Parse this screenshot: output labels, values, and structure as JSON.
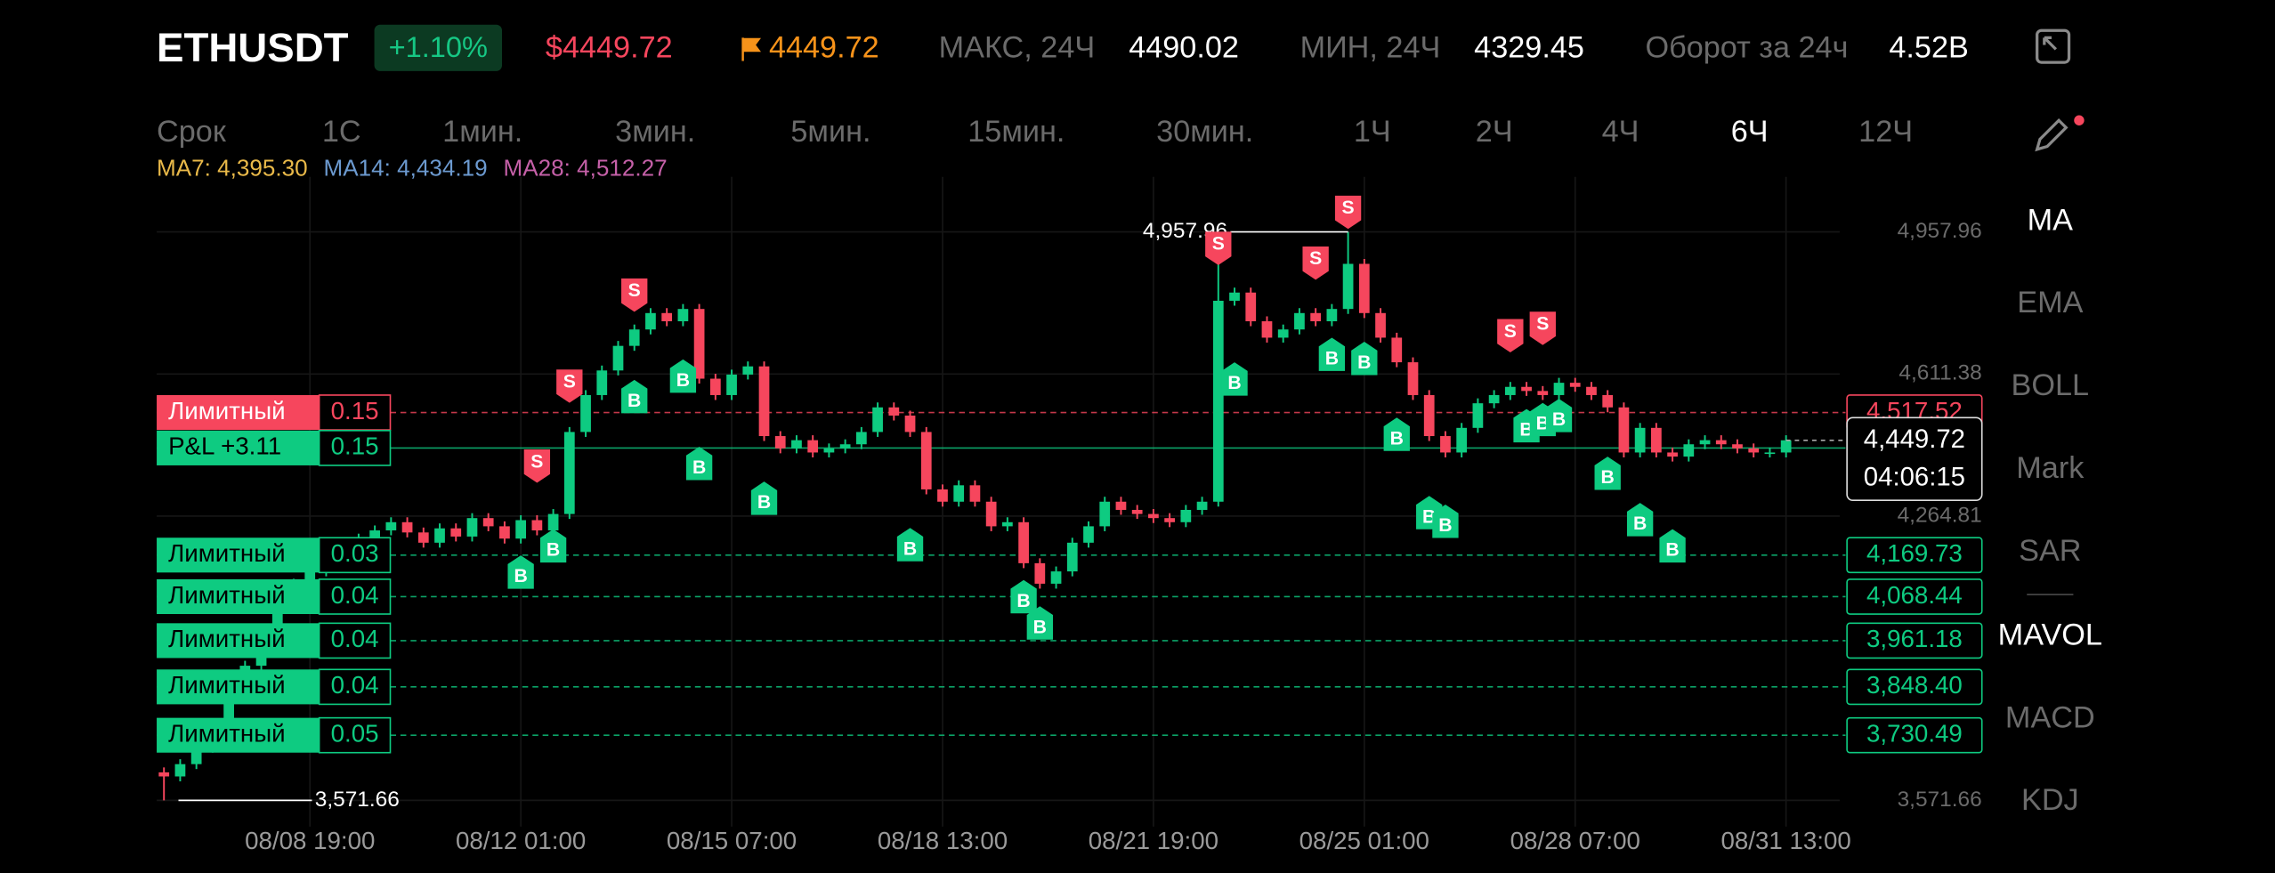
{
  "header": {
    "symbol": "ETHUSDT",
    "change": "+1.10%",
    "last_price": "$4449.72",
    "mark_price": "4449.72",
    "high_label": "МАКС, 24Ч",
    "high": "4490.02",
    "low_label": "МИН, 24Ч",
    "low": "4329.45",
    "turnover_label": "Оборот за 24ч",
    "turnover": "4.52B"
  },
  "timeframes": {
    "label": "Срок",
    "items": [
      "1С",
      "1мин.",
      "3мин.",
      "5мин.",
      "15мин.",
      "30мин.",
      "1Ч",
      "2Ч",
      "4Ч",
      "6Ч",
      "12Ч"
    ],
    "selected": 9
  },
  "indicators": {
    "items": [
      "MA",
      "EMA",
      "BOLL",
      "Mark",
      "SAR",
      "MAVOL",
      "MACD",
      "KDJ"
    ],
    "active": [
      0,
      5
    ]
  },
  "chart_data": {
    "type": "candlestick",
    "ma_legend": [
      {
        "text": "MA7: 4,395.30",
        "color": "#e9b949"
      },
      {
        "text": "MA14: 4,434.19",
        "color": "#6c9ad0"
      },
      {
        "text": "MA28: 4,512.27",
        "color": "#c560a8"
      }
    ],
    "up_color": "#0ecb81",
    "down_color": "#f6465d",
    "open": [
      3640,
      3630,
      3660,
      3700,
      3760,
      3820,
      3900,
      3980,
      4050,
      4100,
      4130,
      4160,
      4190,
      4210,
      4230,
      4250,
      4225,
      4200,
      4235,
      4215,
      4260,
      4240,
      4210,
      4255,
      4230,
      4270,
      4470,
      4560,
      4620,
      4680,
      4720,
      4760,
      4740,
      4770,
      4600,
      4560,
      4610,
      4630,
      4460,
      4430,
      4450,
      4420,
      4430,
      4440,
      4470,
      4530,
      4510,
      4470,
      4330,
      4300,
      4340,
      4300,
      4240,
      4250,
      4150,
      4100,
      4130,
      4200,
      4240,
      4300,
      4280,
      4270,
      4260,
      4250,
      4280,
      4300,
      4790,
      4810,
      4740,
      4700,
      4720,
      4760,
      4740,
      4770,
      4880,
      4760,
      4700,
      4640,
      4560,
      4460,
      4420,
      4480,
      4540,
      4560,
      4580,
      4570,
      4560,
      4590,
      4580,
      4560,
      4530,
      4420,
      4480,
      4420,
      4410,
      4440,
      4450,
      4440,
      4430,
      4420,
      4420
    ],
    "high": [
      3652,
      3672,
      3712,
      3772,
      3832,
      3912,
      3992,
      4062,
      4112,
      4142,
      4172,
      4202,
      4222,
      4242,
      4262,
      4262,
      4237,
      4247,
      4247,
      4272,
      4272,
      4252,
      4267,
      4267,
      4282,
      4482,
      4572,
      4632,
      4692,
      4732,
      4772,
      4772,
      4782,
      4782,
      4612,
      4622,
      4642,
      4642,
      4472,
      4462,
      4462,
      4442,
      4452,
      4482,
      4542,
      4542,
      4522,
      4482,
      4342,
      4352,
      4352,
      4312,
      4262,
      4262,
      4162,
      4142,
      4212,
      4252,
      4312,
      4312,
      4292,
      4282,
      4272,
      4292,
      4312,
      4890,
      4822,
      4822,
      4752,
      4732,
      4772,
      4772,
      4782,
      4957.96,
      4892,
      4772,
      4712,
      4652,
      4572,
      4472,
      4492,
      4552,
      4572,
      4592,
      4592,
      4582,
      4602,
      4602,
      4592,
      4572,
      4542,
      4492,
      4492,
      4432,
      4452,
      4462,
      4462,
      4452,
      4442,
      4432,
      4462
    ],
    "low": [
      3571.66,
      3618,
      3648,
      3688,
      3748,
      3808,
      3888,
      3968,
      4038,
      4088,
      4118,
      4148,
      4178,
      4198,
      4218,
      4213,
      4188,
      4188,
      4203,
      4203,
      4228,
      4198,
      4198,
      4218,
      4218,
      4258,
      4458,
      4548,
      4608,
      4668,
      4708,
      4728,
      4728,
      4588,
      4548,
      4548,
      4598,
      4448,
      4418,
      4418,
      4408,
      4408,
      4418,
      4428,
      4458,
      4498,
      4458,
      4318,
      4288,
      4288,
      4288,
      4228,
      4228,
      4138,
      4088,
      4088,
      4118,
      4188,
      4228,
      4268,
      4258,
      4248,
      4238,
      4238,
      4268,
      4288,
      4778,
      4728,
      4688,
      4688,
      4708,
      4728,
      4728,
      4758,
      4748,
      4688,
      4628,
      4548,
      4448,
      4408,
      4408,
      4468,
      4528,
      4548,
      4558,
      4548,
      4548,
      4568,
      4548,
      4518,
      4408,
      4408,
      4408,
      4398,
      4398,
      4428,
      4428,
      4418,
      4408,
      4408,
      4408
    ],
    "close": [
      3630,
      3660,
      3700,
      3760,
      3820,
      3900,
      3980,
      4050,
      4100,
      4130,
      4160,
      4190,
      4210,
      4230,
      4250,
      4225,
      4200,
      4235,
      4215,
      4260,
      4240,
      4210,
      4255,
      4230,
      4270,
      4470,
      4560,
      4620,
      4680,
      4720,
      4760,
      4740,
      4770,
      4600,
      4560,
      4610,
      4630,
      4460,
      4430,
      4450,
      4420,
      4430,
      4440,
      4470,
      4530,
      4510,
      4470,
      4330,
      4300,
      4340,
      4300,
      4240,
      4250,
      4150,
      4100,
      4130,
      4200,
      4240,
      4300,
      4280,
      4270,
      4260,
      4250,
      4280,
      4300,
      4790,
      4810,
      4740,
      4700,
      4720,
      4760,
      4740,
      4770,
      4880,
      4760,
      4700,
      4640,
      4560,
      4460,
      4420,
      4480,
      4540,
      4560,
      4580,
      4570,
      4560,
      4590,
      4580,
      4560,
      4530,
      4420,
      4480,
      4420,
      4410,
      4440,
      4450,
      4440,
      4430,
      4420,
      4420,
      4449.72
    ],
    "ylim": [
      3490,
      5092
    ],
    "yticks": [
      {
        "value": 4957.96,
        "label": "4,957.96"
      },
      {
        "value": 4611.38,
        "label": "4,611.38"
      },
      {
        "value": 4264.81,
        "label": "4,264.81"
      },
      {
        "value": 3571.66,
        "label": "3,571.66"
      }
    ],
    "xticks": [
      {
        "value": 9,
        "label": "08/08 19:00"
      },
      {
        "value": 22,
        "label": "08/12 01:00"
      },
      {
        "value": 35,
        "label": "08/15 07:00"
      },
      {
        "value": 48,
        "label": "08/18 13:00"
      },
      {
        "value": 61,
        "label": "08/21 19:00"
      },
      {
        "value": 74,
        "label": "08/25 01:00"
      },
      {
        "value": 87,
        "label": "08/28 07:00"
      },
      {
        "value": 100,
        "label": "08/31 13:00"
      }
    ],
    "grid": true,
    "high_annotation": {
      "value": 4957.96,
      "label": "4,957.96",
      "candle": 73
    },
    "low_annotation": {
      "value": 3571.66,
      "label": "3,571.66",
      "candle": 0
    },
    "orders": [
      {
        "type": "Лимитный",
        "qty": "0.15",
        "price": 4517.52,
        "price_label": "4,517.52",
        "side": "sell"
      },
      {
        "type": "Лимитный",
        "qty": "0.03",
        "price": 4169.73,
        "price_label": "4,169.73",
        "side": "buy"
      },
      {
        "type": "Лимитный",
        "qty": "0.04",
        "price": 4068.44,
        "price_label": "4,068.44",
        "side": "buy"
      },
      {
        "type": "Лимитный",
        "qty": "0.04",
        "price": 3961.18,
        "price_label": "3,961.18",
        "side": "buy"
      },
      {
        "type": "Лимитный",
        "qty": "0.04",
        "price": 3848.4,
        "price_label": "3,848.40",
        "side": "buy"
      },
      {
        "type": "Лимитный",
        "qty": "0.05",
        "price": 3730.49,
        "price_label": "3,730.49",
        "side": "buy"
      }
    ],
    "position": {
      "label": "P&L +3.11",
      "qty": "0.15",
      "price": 4431
    },
    "last": {
      "value": 4449.72,
      "label": "4,449.72",
      "countdown": "04:06:15"
    },
    "trades": [
      {
        "side": "S",
        "candle": 23,
        "price": 4339
      },
      {
        "side": "S",
        "candle": 25,
        "price": 4534
      },
      {
        "side": "S",
        "candle": 29,
        "price": 4756
      },
      {
        "side": "S",
        "candle": 65,
        "price": 4870
      },
      {
        "side": "S",
        "candle": 71,
        "price": 4834
      },
      {
        "side": "S",
        "candle": 73,
        "price": 4958
      },
      {
        "side": "S",
        "candle": 83,
        "price": 4657
      },
      {
        "side": "S",
        "candle": 85,
        "price": 4675
      },
      {
        "side": "B",
        "candle": 22,
        "price": 4169
      },
      {
        "side": "B",
        "candle": 24,
        "price": 4233
      },
      {
        "side": "B",
        "candle": 29,
        "price": 4597
      },
      {
        "side": "B",
        "candle": 32,
        "price": 4647
      },
      {
        "side": "B",
        "candle": 33,
        "price": 4434
      },
      {
        "side": "B",
        "candle": 37,
        "price": 4349
      },
      {
        "side": "B",
        "candle": 46,
        "price": 4236
      },
      {
        "side": "B",
        "candle": 53,
        "price": 4109
      },
      {
        "side": "B",
        "candle": 54,
        "price": 4045
      },
      {
        "side": "B",
        "candle": 66,
        "price": 4640
      },
      {
        "side": "B",
        "candle": 72,
        "price": 4700
      },
      {
        "side": "B",
        "candle": 74,
        "price": 4690
      },
      {
        "side": "B",
        "candle": 76,
        "price": 4505
      },
      {
        "side": "B",
        "candle": 78,
        "price": 4314
      },
      {
        "side": "B",
        "candle": 79,
        "price": 4293
      },
      {
        "side": "B",
        "candle": 84,
        "price": 4526
      },
      {
        "side": "B",
        "candle": 85,
        "price": 4541
      },
      {
        "side": "B",
        "candle": 86,
        "price": 4551
      },
      {
        "side": "B",
        "candle": 89,
        "price": 4410
      },
      {
        "side": "B",
        "candle": 91,
        "price": 4297
      },
      {
        "side": "B",
        "candle": 93,
        "price": 4233
      }
    ]
  }
}
